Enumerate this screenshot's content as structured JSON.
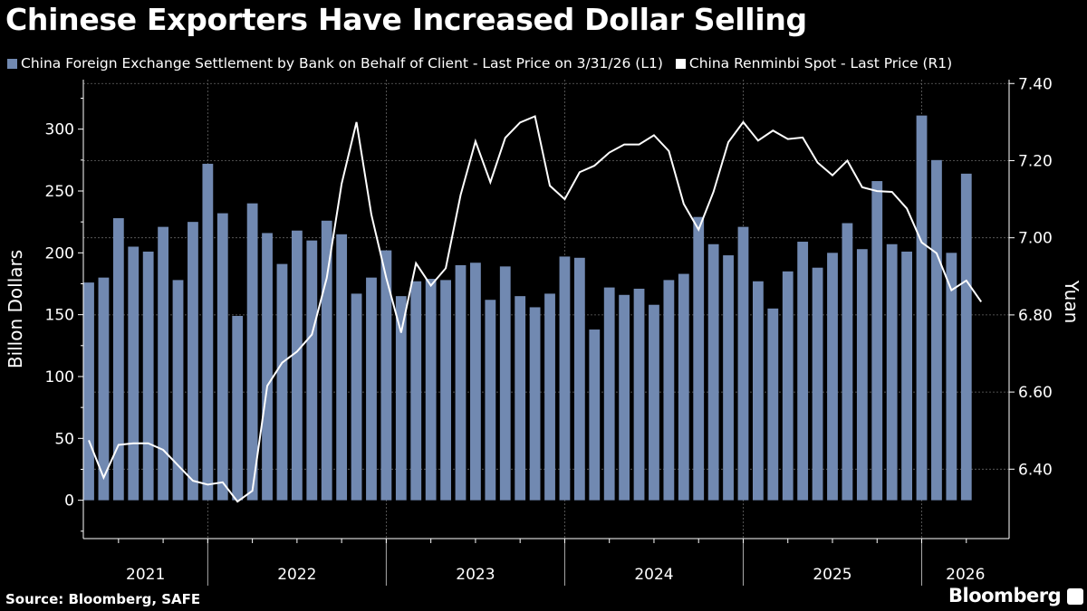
{
  "title": "Chinese Exporters Have Increased Dollar Selling",
  "source": "Source: Bloomberg, SAFE",
  "brand": "Bloomberg",
  "chart_data": {
    "type": "bar+line",
    "title": "Chinese Exporters Have Increased Dollar Selling",
    "ylabel_left": "Billon Dollars",
    "ylabel_right": "Yuan",
    "ylim_left": [
      -31,
      340
    ],
    "ylim_right": [
      6.22,
      7.41
    ],
    "yticks_left": [
      0,
      50,
      100,
      150,
      200,
      250,
      300
    ],
    "yticks_right": [
      "6.40",
      "6.60",
      "6.80",
      "7.00",
      "7.20",
      "7.40"
    ],
    "xticks": [
      "2021",
      "2022",
      "2023",
      "2024",
      "2025",
      "2026"
    ],
    "grid": true,
    "legend_placement": "top-left",
    "x_start": "2021-04",
    "series": [
      {
        "name": "China Foreign Exchange Settlement by Bank on Behalf of Client - Last Price on 3/31/26 (L1)",
        "type": "bar",
        "axis": "left",
        "color": "#7189b1",
        "values": [
          176,
          180,
          228,
          205,
          201,
          221,
          178,
          225,
          272,
          232,
          149,
          240,
          216,
          191,
          218,
          210,
          226,
          215,
          167,
          180,
          202,
          165,
          177,
          179,
          178,
          190,
          192,
          162,
          189,
          165,
          156,
          167,
          197,
          196,
          138,
          172,
          166,
          171,
          158,
          178,
          183,
          229,
          207,
          198,
          221,
          177,
          155,
          185,
          209,
          188,
          200,
          224,
          203,
          258,
          207,
          201,
          311,
          275,
          200,
          264
        ]
      },
      {
        "name": "China Renminbi Spot - Last Price (R1)",
        "type": "line",
        "axis": "right",
        "color": "#ffffff",
        "values": [
          6.475,
          6.378,
          6.463,
          6.467,
          6.467,
          6.45,
          6.41,
          6.37,
          6.36,
          6.366,
          6.316,
          6.344,
          6.616,
          6.676,
          6.705,
          6.749,
          6.896,
          7.14,
          7.3,
          7.06,
          6.896,
          6.754,
          6.934,
          6.876,
          6.921,
          7.111,
          7.25,
          7.144,
          7.259,
          7.299,
          7.315,
          7.135,
          7.1,
          7.17,
          7.187,
          7.221,
          7.242,
          7.242,
          7.266,
          7.225,
          7.088,
          7.021,
          7.119,
          7.248,
          7.3,
          7.252,
          7.278,
          7.256,
          7.26,
          7.195,
          7.162,
          7.2,
          7.131,
          7.121,
          7.119,
          7.076,
          6.988,
          6.96,
          6.864,
          6.889,
          6.834
        ]
      }
    ]
  }
}
